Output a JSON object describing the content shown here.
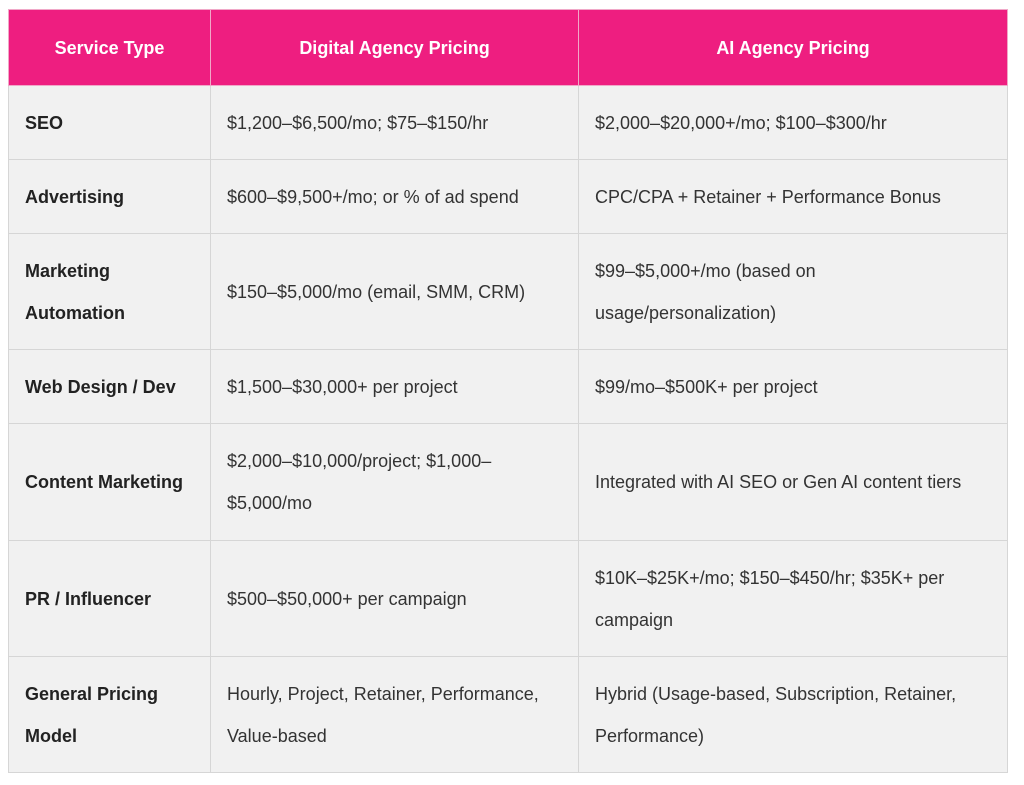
{
  "table": {
    "headers": [
      "Service Type",
      "Digital Agency Pricing",
      "AI Agency Pricing"
    ],
    "rows": [
      [
        "SEO",
        "$1,200–$6,500/mo; $75–$150/hr",
        "$2,000–$20,000+/mo; $100–$300/hr"
      ],
      [
        "Advertising",
        "$600–$9,500+/mo; or % of ad spend",
        "CPC/CPA + Retainer + Performance Bonus"
      ],
      [
        "Marketing Automation",
        "$150–$5,000/mo (email, SMM, CRM)",
        "$99–$5,000+/mo (based on usage/personalization)"
      ],
      [
        "Web Design / Dev",
        "$1,500–$30,000+ per project",
        "$99/mo–$500K+ per project"
      ],
      [
        "Content Marketing",
        "$2,000–$10,000/project; $1,000–$5,000/mo",
        "Integrated with AI SEO or Gen AI content tiers"
      ],
      [
        "PR / Influencer",
        "$500–$50,000+ per campaign",
        "$10K–$25K+/mo; $150–$450/hr; $35K+ per campaign"
      ],
      [
        "General Pricing Model",
        "Hourly, Project, Retainer, Performance, Value-based",
        "Hybrid (Usage-based, Subscription, Retainer, Performance)"
      ]
    ]
  },
  "colors": {
    "header_background": "#ee1e80",
    "header_text": "#ffffff",
    "cell_background": "#f1f1f1"
  }
}
